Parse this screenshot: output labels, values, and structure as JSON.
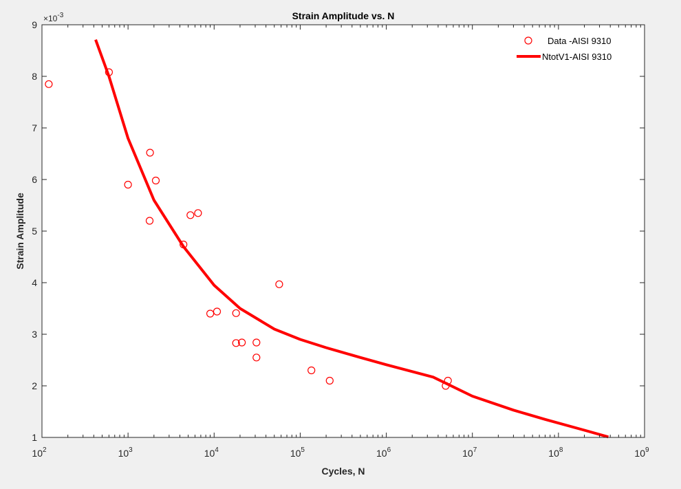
{
  "chart_data": {
    "type": "scatter",
    "title": "Strain Amplitude vs. N",
    "xlabel": "Cycles, N",
    "ylabel": "Strain Amplitude",
    "x_scale": "log",
    "xlim": [
      100,
      1000000000
    ],
    "ylim": [
      0.001,
      0.009
    ],
    "y_exponent_label": "×10",
    "y_exponent": "-3",
    "x_ticks": [
      {
        "base": "10",
        "exp": "2"
      },
      {
        "base": "10",
        "exp": "3"
      },
      {
        "base": "10",
        "exp": "4"
      },
      {
        "base": "10",
        "exp": "5"
      },
      {
        "base": "10",
        "exp": "6"
      },
      {
        "base": "10",
        "exp": "7"
      },
      {
        "base": "10",
        "exp": "8"
      },
      {
        "base": "10",
        "exp": "9"
      }
    ],
    "y_ticks": [
      "1",
      "2",
      "3",
      "4",
      "5",
      "6",
      "7",
      "8",
      "9"
    ],
    "grid": false,
    "legend_position": "top-right",
    "series": [
      {
        "name": "Data -AISI 9310",
        "kind": "scatter",
        "marker": "open-circle",
        "color": "#ff0000",
        "points": [
          [
            120,
            0.00785
          ],
          [
            600,
            0.00808
          ],
          [
            1000,
            0.0059
          ],
          [
            1800,
            0.00652
          ],
          [
            1780,
            0.0052
          ],
          [
            2100,
            0.00598
          ],
          [
            4400,
            0.00474
          ],
          [
            5300,
            0.00531
          ],
          [
            6500,
            0.00535
          ],
          [
            9000,
            0.0034
          ],
          [
            10800,
            0.00344
          ],
          [
            18000,
            0.00341
          ],
          [
            18000,
            0.00283
          ],
          [
            21000,
            0.00284
          ],
          [
            31000,
            0.00284
          ],
          [
            31000,
            0.00255
          ],
          [
            57000,
            0.00397
          ],
          [
            135000,
            0.0023
          ],
          [
            220000,
            0.0021
          ],
          [
            4900000,
            0.002
          ],
          [
            5200000,
            0.0021
          ]
        ]
      },
      {
        "name": "NtotV1-AISI 9310",
        "kind": "line",
        "color": "#ff0000",
        "points": [
          [
            420,
            0.00871
          ],
          [
            600,
            0.008
          ],
          [
            1000,
            0.0068
          ],
          [
            2000,
            0.0056
          ],
          [
            4400,
            0.0047
          ],
          [
            10000,
            0.00395
          ],
          [
            20000,
            0.0035
          ],
          [
            50000,
            0.0031
          ],
          [
            100000,
            0.0029
          ],
          [
            200000,
            0.00274
          ],
          [
            500000,
            0.00255
          ],
          [
            1000000,
            0.00241
          ],
          [
            3500000,
            0.00217
          ],
          [
            10000000,
            0.0018
          ],
          [
            30000000,
            0.00153
          ],
          [
            70000000,
            0.00135
          ],
          [
            200000000,
            0.00114
          ],
          [
            380000000,
            0.00101
          ]
        ]
      }
    ]
  }
}
